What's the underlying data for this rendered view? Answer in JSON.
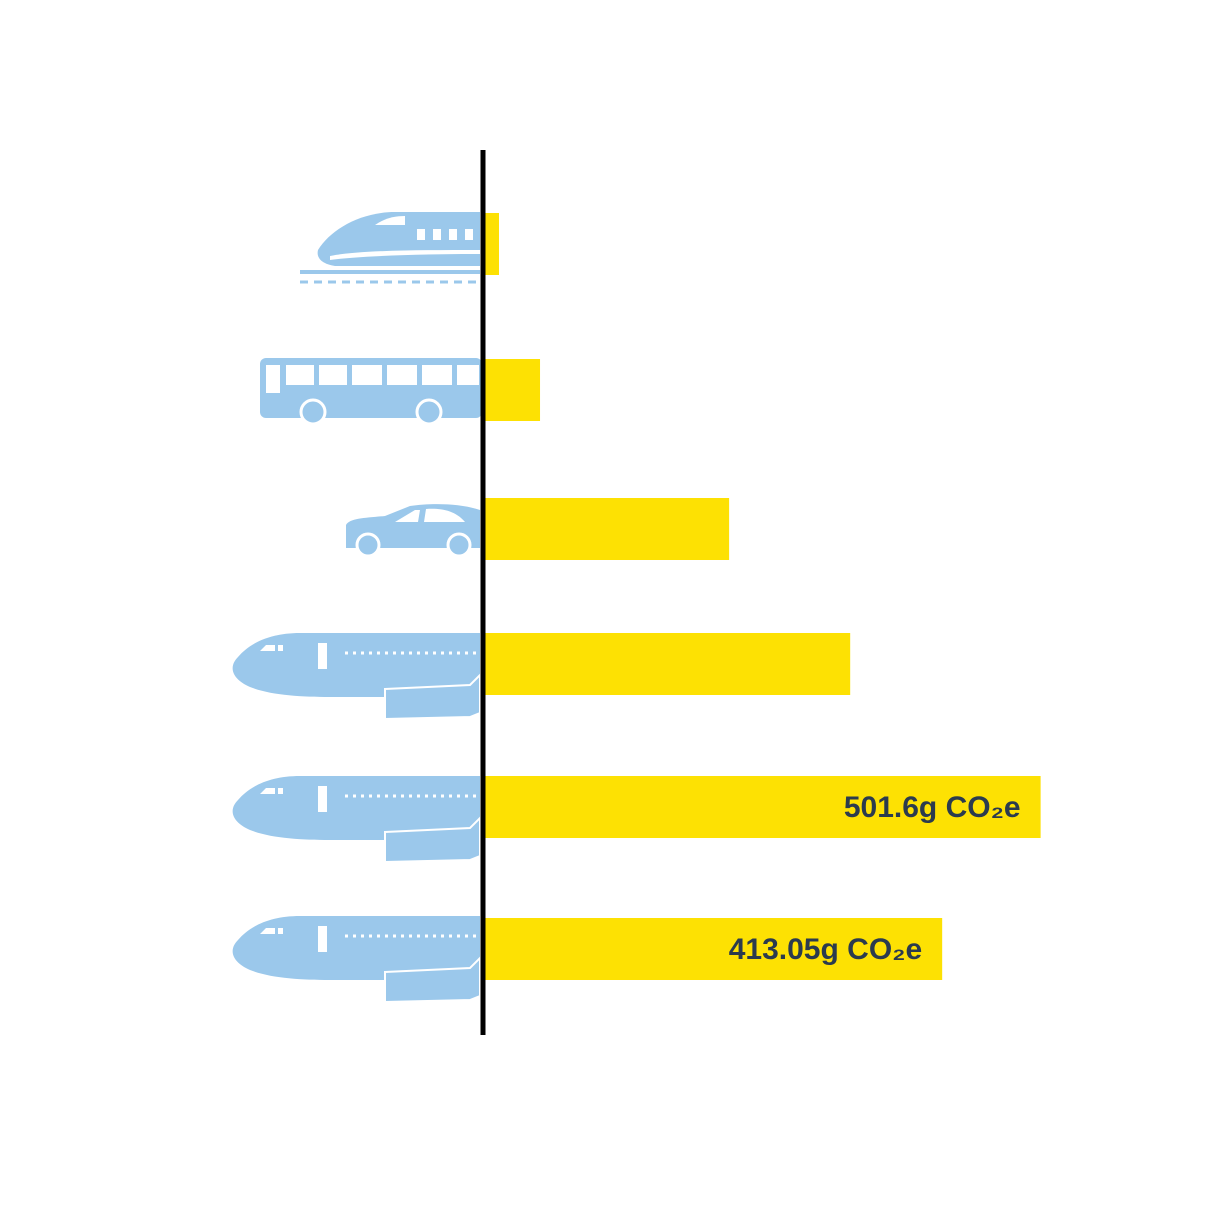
{
  "chart_data": {
    "type": "bar",
    "orientation": "horizontal",
    "categories": [
      null,
      null,
      null,
      null,
      null,
      null
    ],
    "values": [
      14.4,
      51.3,
      221.4,
      330.3,
      501.6,
      413.05
    ],
    "value_labels": [
      null,
      null,
      null,
      null,
      "501.6g CO₂e",
      "413.05g CO₂e"
    ],
    "color": "#fde103",
    "xlim": [
      0,
      600
    ]
  }
}
